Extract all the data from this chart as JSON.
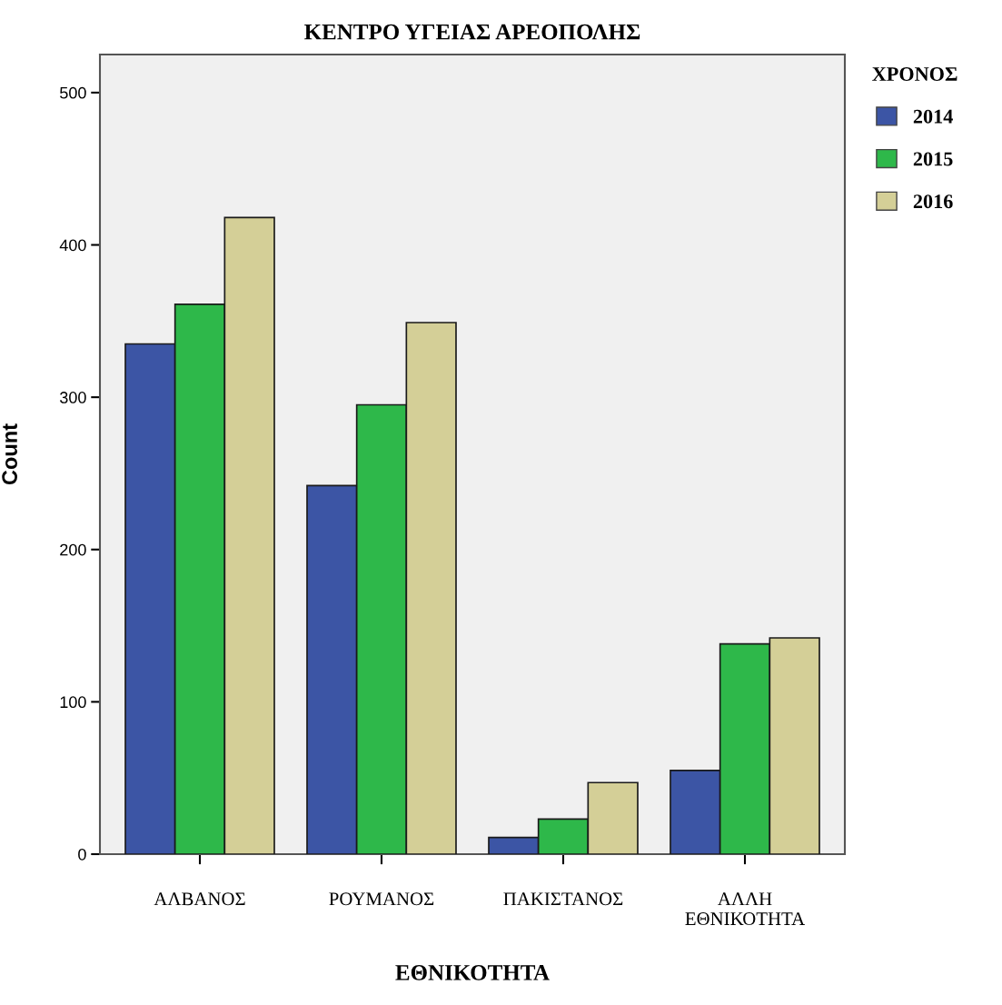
{
  "chart_data": {
    "type": "bar",
    "title": "ΚΕΝΤΡΟ ΥΓΕΙΑΣ ΑΡΕΟΠΟΛΗΣ",
    "xlabel": "ΕΘΝΙΚΟΤΗΤΑ",
    "ylabel": "Count",
    "legend_title": "ΧΡΟΝΟΣ",
    "categories": [
      "ΑΛΒΑΝΟΣ",
      "ΡΟΥΜΑΝΟΣ",
      "ΠΑΚΙΣΤΑΝΟΣ",
      "ΑΛΛΗ\nΕΘΝΙΚΟΤΗΤΑ"
    ],
    "series": [
      {
        "name": "2014",
        "color": "#3c55a5",
        "values": [
          335,
          242,
          11,
          55
        ]
      },
      {
        "name": "2015",
        "color": "#2eb84a",
        "values": [
          361,
          295,
          23,
          138
        ]
      },
      {
        "name": "2016",
        "color": "#d4cf97",
        "values": [
          418,
          349,
          47,
          142
        ]
      }
    ],
    "ylim": [
      0,
      525
    ],
    "yticks": [
      0,
      100,
      200,
      300,
      400,
      500
    ],
    "grid": false,
    "legend": "right"
  }
}
